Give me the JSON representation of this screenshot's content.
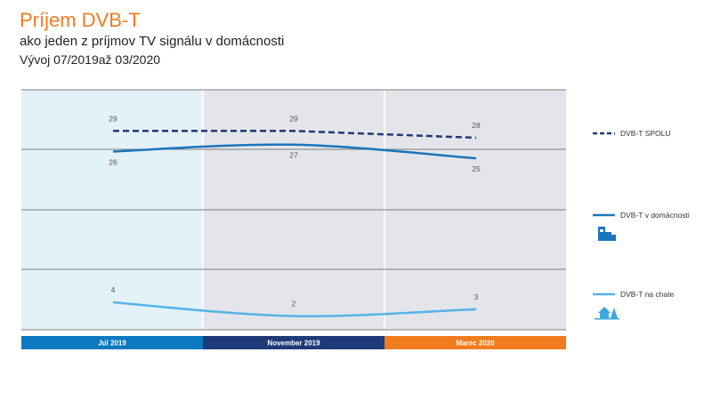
{
  "header": {
    "title": "Príjem DVB-T",
    "subtitle": "ako jeden z príjmov TV signálu v domácnosti",
    "period": "Vývoj 07/2019až 03/2020"
  },
  "chart_data": {
    "type": "line",
    "categories": [
      "Júl 2019",
      "November 2019",
      "Marec 2020"
    ],
    "category_colors": [
      "#0b79bf",
      "#1f3a78",
      "#f07c1e"
    ],
    "ylim": [
      0,
      35
    ],
    "grid": true,
    "legend_position": "right",
    "series": [
      {
        "name": "DVB-T SPOLU",
        "values": [
          29,
          29,
          28
        ],
        "color": "#1f3a78",
        "style": "dashed",
        "icon": ""
      },
      {
        "name": "DVB-T v domácnosti",
        "values": [
          26,
          27,
          25
        ],
        "color": "#1b75bb",
        "style": "solid",
        "icon": "apartment-building-icon"
      },
      {
        "name": "DVB-T na chate",
        "values": [
          4,
          2,
          3
        ],
        "color": "#55b4e6",
        "style": "solid",
        "icon": "cottage-icon"
      }
    ]
  }
}
